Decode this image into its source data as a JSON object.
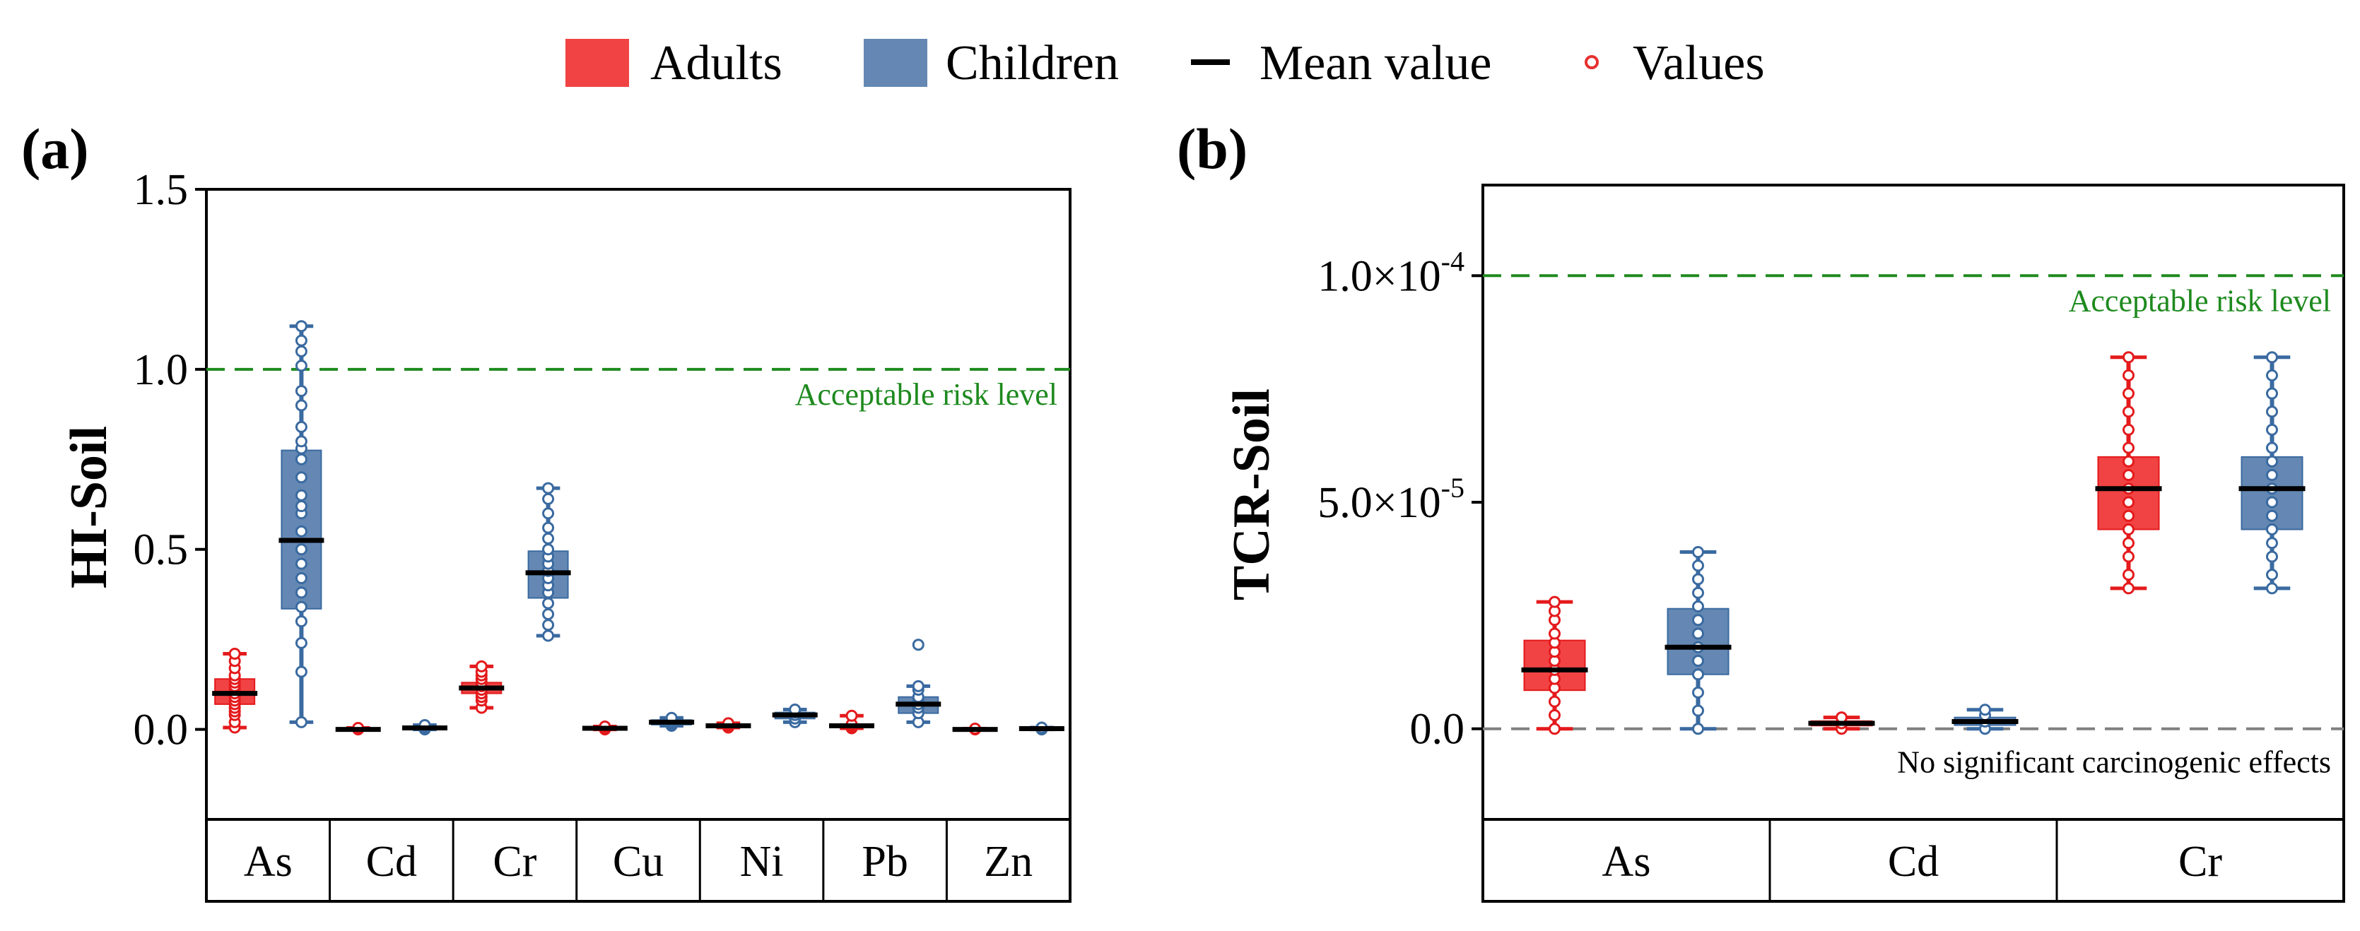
{
  "legend": {
    "items": [
      {
        "label": "Adults",
        "type": "box",
        "color": "#f14344"
      },
      {
        "label": "Children",
        "type": "box",
        "color": "#6488b3"
      },
      {
        "label": "Mean value",
        "type": "line",
        "color": "#000000"
      },
      {
        "label": "Values",
        "type": "circle",
        "color": "#e8302f"
      }
    ]
  },
  "colors": {
    "adults": "#f14344",
    "children": "#6488b3",
    "adults_dark": "#e41a1c",
    "children_dark": "#3a6aa0",
    "reference_green": "#1e8a1e",
    "reference_gray": "#808080"
  },
  "chart_data": [
    {
      "panel_label": "(a)",
      "type": "box",
      "ylabel": "HI-Soil",
      "ylim": [
        -0.25,
        1.5
      ],
      "yticks": [
        0.0,
        0.5,
        1.0,
        1.5
      ],
      "ytick_labels": [
        "0.0",
        "0.5",
        "1.0",
        "1.5"
      ],
      "categories": [
        "As",
        "Cd",
        "Cr",
        "Cu",
        "Ni",
        "Pb",
        "Zn"
      ],
      "reference_lines": [
        {
          "y": 1.0,
          "label": "Acceptable risk level",
          "color": "#1e8a1e"
        }
      ],
      "series": [
        {
          "name": "Adults",
          "boxes": [
            {
              "min": 0.005,
              "q1": 0.07,
              "mean": 0.1,
              "q3": 0.14,
              "max": 0.21,
              "values": [
                0.005,
                0.02,
                0.04,
                0.05,
                0.06,
                0.07,
                0.08,
                0.09,
                0.1,
                0.11,
                0.12,
                0.13,
                0.14,
                0.15,
                0.17,
                0.19,
                0.21
              ]
            },
            {
              "min": 0.0,
              "q1": 0.0,
              "mean": 0.0,
              "q3": 0.002,
              "max": 0.004,
              "values": [
                0.0,
                0.002,
                0.004
              ]
            },
            {
              "min": 0.06,
              "q1": 0.1,
              "mean": 0.115,
              "q3": 0.13,
              "max": 0.175,
              "values": [
                0.06,
                0.08,
                0.09,
                0.1,
                0.11,
                0.12,
                0.13,
                0.14,
                0.15,
                0.16,
                0.175
              ]
            },
            {
              "min": 0.0,
              "q1": 0.001,
              "mean": 0.003,
              "q3": 0.005,
              "max": 0.008,
              "values": [
                0.0,
                0.003,
                0.006,
                0.008
              ]
            },
            {
              "min": 0.005,
              "q1": 0.008,
              "mean": 0.01,
              "q3": 0.013,
              "max": 0.017,
              "values": [
                0.005,
                0.008,
                0.01,
                0.013,
                0.017
              ]
            },
            {
              "min": 0.003,
              "q1": 0.007,
              "mean": 0.01,
              "q3": 0.014,
              "max": 0.038,
              "values": [
                0.003,
                0.007,
                0.01,
                0.014,
                0.038
              ]
            },
            {
              "min": 0.0,
              "q1": 0.0,
              "mean": 0.0,
              "q3": 0.001,
              "max": 0.002,
              "values": [
                0.0,
                0.001,
                0.002
              ]
            }
          ]
        },
        {
          "name": "Children",
          "boxes": [
            {
              "min": 0.02,
              "q1": 0.335,
              "mean": 0.525,
              "q3": 0.775,
              "max": 1.12,
              "values": [
                0.02,
                0.16,
                0.24,
                0.3,
                0.34,
                0.38,
                0.42,
                0.46,
                0.5,
                0.55,
                0.6,
                0.62,
                0.65,
                0.7,
                0.75,
                0.78,
                0.8,
                0.84,
                0.9,
                0.94,
                1.01,
                1.05,
                1.08,
                1.12
              ]
            },
            {
              "min": 0.0,
              "q1": 0.002,
              "mean": 0.004,
              "q3": 0.007,
              "max": 0.012,
              "values": [
                0.0,
                0.004,
                0.008,
                0.012
              ]
            },
            {
              "min": 0.26,
              "q1": 0.365,
              "mean": 0.435,
              "q3": 0.495,
              "max": 0.67,
              "values": [
                0.26,
                0.29,
                0.32,
                0.35,
                0.38,
                0.4,
                0.42,
                0.44,
                0.46,
                0.48,
                0.5,
                0.53,
                0.56,
                0.6,
                0.64,
                0.67
              ]
            },
            {
              "min": 0.01,
              "q1": 0.013,
              "mean": 0.02,
              "q3": 0.026,
              "max": 0.032,
              "values": [
                0.01,
                0.015,
                0.02,
                0.026,
                0.032
              ]
            },
            {
              "min": 0.02,
              "q1": 0.03,
              "mean": 0.04,
              "q3": 0.047,
              "max": 0.055,
              "values": [
                0.02,
                0.03,
                0.04,
                0.047,
                0.055
              ]
            },
            {
              "min": 0.02,
              "q1": 0.045,
              "mean": 0.07,
              "q3": 0.09,
              "max": 0.12,
              "values": [
                0.02,
                0.045,
                0.06,
                0.07,
                0.08,
                0.09,
                0.11,
                0.12,
                0.235
              ]
            },
            {
              "min": 0.0,
              "q1": 0.001,
              "mean": 0.002,
              "q3": 0.003,
              "max": 0.005,
              "values": [
                0.0,
                0.002,
                0.005
              ]
            }
          ]
        }
      ]
    },
    {
      "panel_label": "(b)",
      "type": "box",
      "ylabel": "TCR-Soil",
      "ylim": [
        -2e-05,
        0.00012
      ],
      "yticks": [
        0.0,
        5e-05,
        0.0001
      ],
      "ytick_labels": [
        {
          "mantissa": "0.0",
          "exp": ""
        },
        {
          "mantissa": "5.0×10",
          "exp": "-5"
        },
        {
          "mantissa": "1.0×10",
          "exp": "-4"
        }
      ],
      "categories": [
        "As",
        "Cd",
        "Cr"
      ],
      "reference_lines": [
        {
          "y": 0.0001,
          "label": "Acceptable risk level",
          "color": "#1e8a1e"
        },
        {
          "y": 0.0,
          "label": "No significant carcinogenic effects",
          "color": "#808080"
        }
      ],
      "series": [
        {
          "name": "Adults",
          "boxes": [
            {
              "min": 0.0,
              "q1": 8.5e-06,
              "mean": 1.3e-05,
              "q3": 1.95e-05,
              "max": 2.8e-05,
              "values": [
                0.0,
                3e-06,
                6e-06,
                9e-06,
                1.1e-05,
                1.3e-05,
                1.5e-05,
                1.7e-05,
                1.9e-05,
                2.1e-05,
                2.4e-05,
                2.6e-05,
                2.8e-05
              ]
            },
            {
              "min": 0.0,
              "q1": 7e-07,
              "mean": 1.2e-06,
              "q3": 1.7e-06,
              "max": 2.5e-06,
              "values": [
                0.0,
                1.2e-06,
                2.5e-06
              ]
            },
            {
              "min": 3.1e-05,
              "q1": 4.4e-05,
              "mean": 5.3e-05,
              "q3": 6e-05,
              "max": 8.2e-05,
              "values": [
                3.1e-05,
                3.4e-05,
                3.8e-05,
                4.1e-05,
                4.4e-05,
                4.7e-05,
                5e-05,
                5.3e-05,
                5.6e-05,
                5.9e-05,
                6.2e-05,
                6.6e-05,
                7e-05,
                7.4e-05,
                7.8e-05,
                8.2e-05
              ]
            }
          ]
        },
        {
          "name": "Children",
          "boxes": [
            {
              "min": 0.0,
              "q1": 1.2e-05,
              "mean": 1.8e-05,
              "q3": 2.65e-05,
              "max": 3.9e-05,
              "values": [
                0.0,
                4e-06,
                8e-06,
                1.2e-05,
                1.5e-05,
                1.8e-05,
                2.1e-05,
                2.4e-05,
                2.7e-05,
                3e-05,
                3.3e-05,
                3.6e-05,
                3.9e-05
              ]
            },
            {
              "min": 0.0,
              "q1": 8e-07,
              "mean": 1.6e-06,
              "q3": 2.5e-06,
              "max": 4.2e-06,
              "values": [
                0.0,
                1.6e-06,
                3e-06,
                4.2e-06
              ]
            },
            {
              "min": 3.1e-05,
              "q1": 4.4e-05,
              "mean": 5.3e-05,
              "q3": 6e-05,
              "max": 8.2e-05,
              "values": [
                3.1e-05,
                3.4e-05,
                3.8e-05,
                4.1e-05,
                4.4e-05,
                4.7e-05,
                5e-05,
                5.3e-05,
                5.6e-05,
                5.9e-05,
                6.2e-05,
                6.6e-05,
                7e-05,
                7.4e-05,
                7.8e-05,
                8.2e-05
              ]
            }
          ]
        }
      ]
    }
  ]
}
